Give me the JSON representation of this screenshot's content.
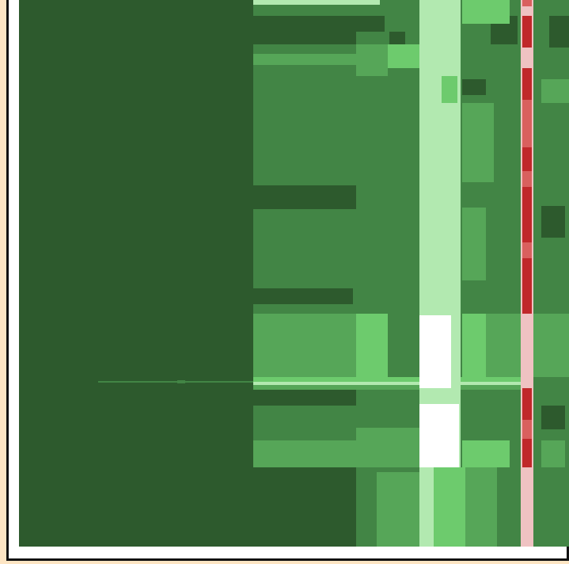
{
  "chart_data": {
    "type": "heatmap",
    "title": "",
    "xlabel": "",
    "ylabel": "",
    "grid": false,
    "legend": "none",
    "colors": {
      "background": "#fde5c3",
      "frame": "#111111",
      "plot_bg": "#ffffff",
      "dark_green": "#2d5a2d",
      "mid_green": "#428545",
      "green": "#56a658",
      "light_green": "#6dcb6d",
      "pale_green": "#b2e9b0",
      "white": "#ffffff",
      "dark_red": "#c0282a",
      "light_red": "#d9605e",
      "pink": "#efc2c2"
    }
  }
}
